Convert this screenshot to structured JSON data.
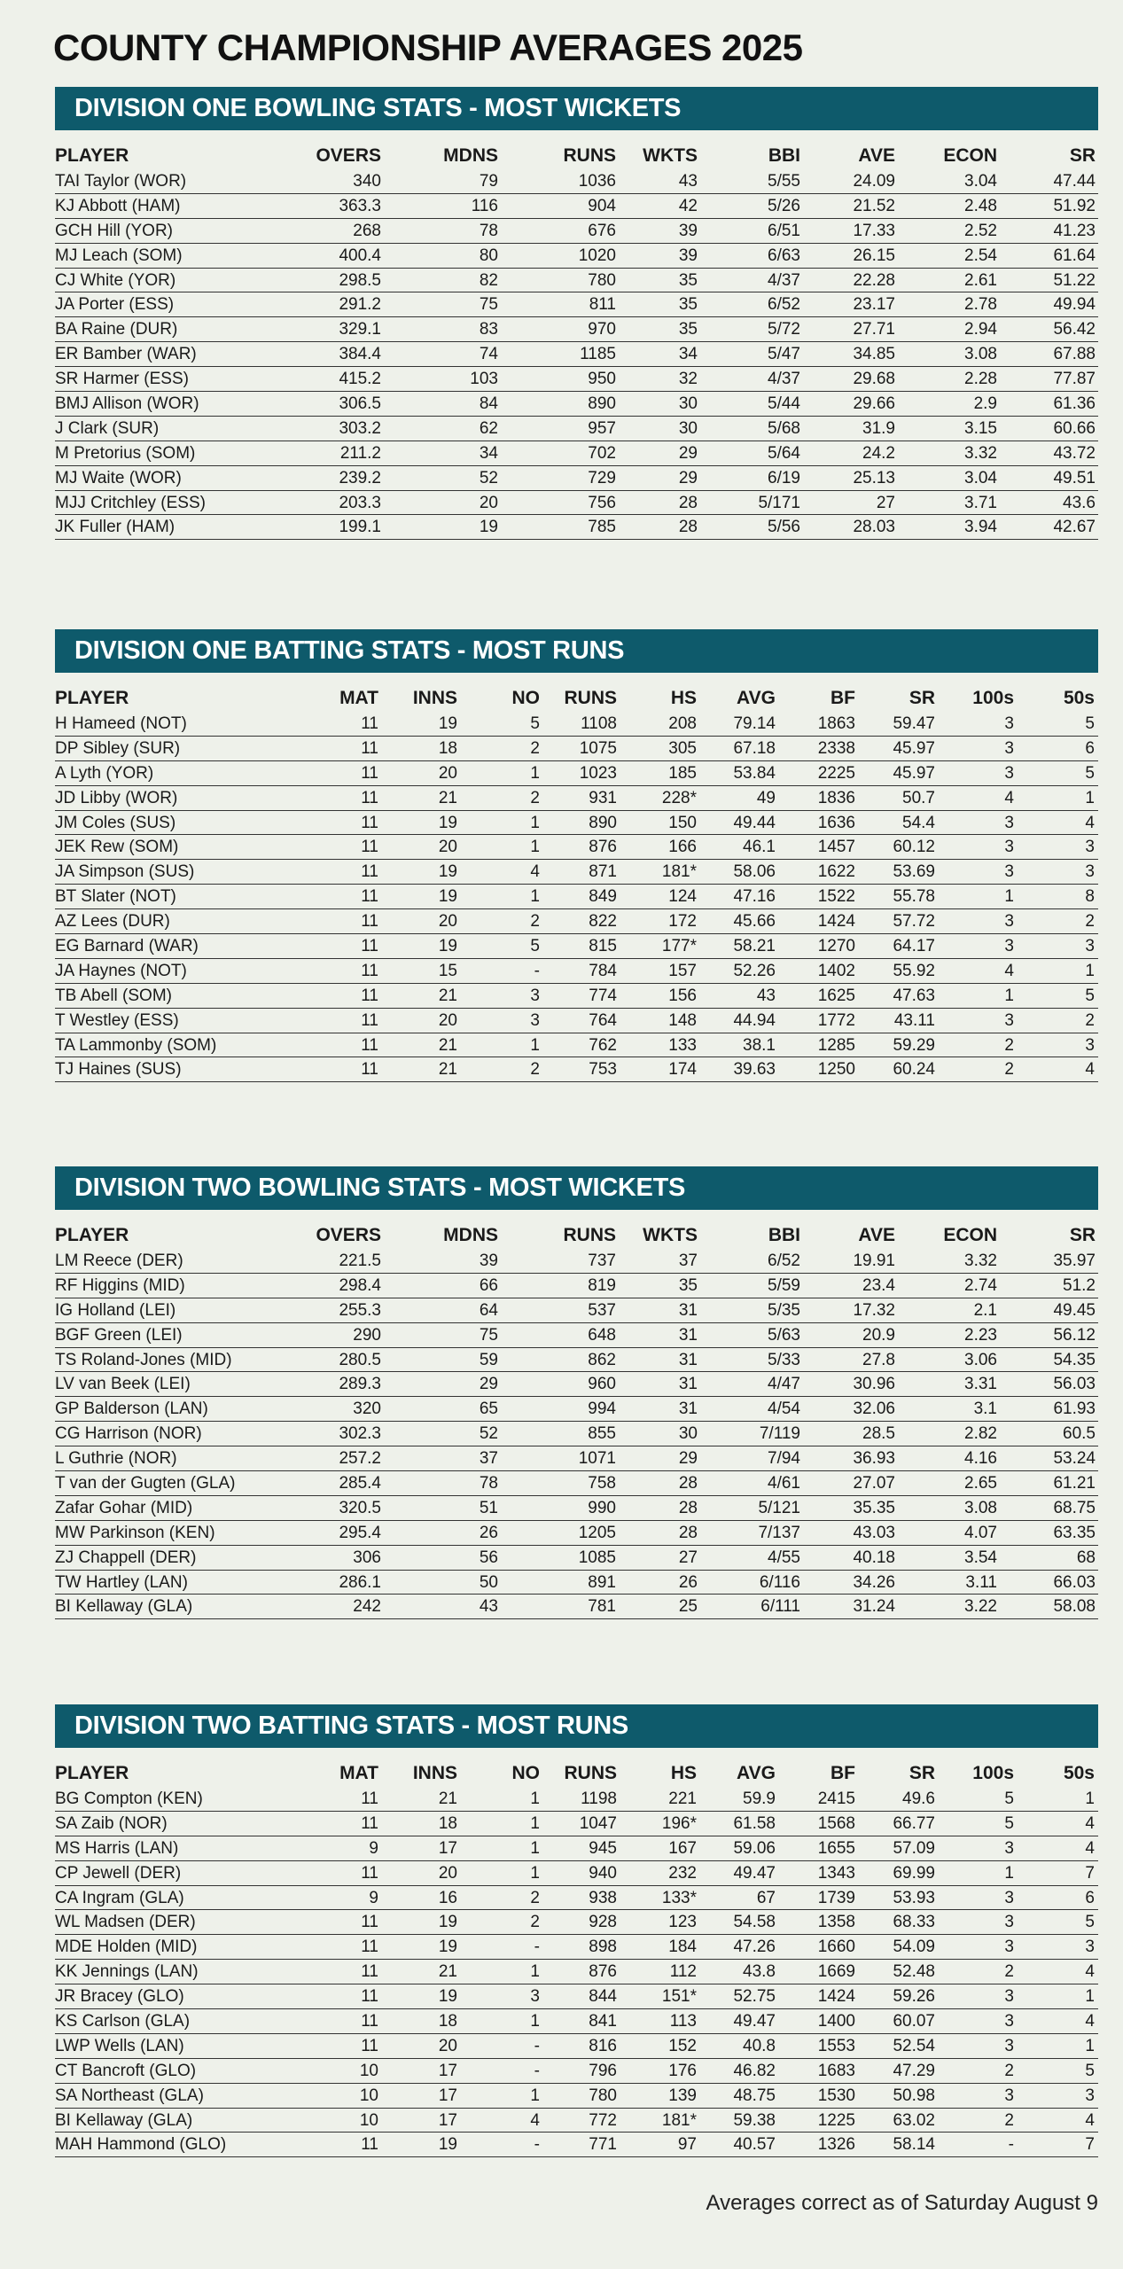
{
  "title": "COUNTY CHAMPIONSHIP  AVERAGES 2025",
  "sections": [
    {
      "heading": "DIVISION ONE BOWLING STATS - MOST WICKETS",
      "table": {
        "columns": [
          "PLAYER",
          "OVERS",
          "MDNS",
          "RUNS",
          "WKTS",
          "BBI",
          "AVE",
          "ECON",
          "SR"
        ],
        "rows": [
          [
            "TAI Taylor (WOR)",
            "340",
            "79",
            "1036",
            "43",
            "5/55",
            "24.09",
            "3.04",
            "47.44"
          ],
          [
            "KJ Abbott (HAM)",
            "363.3",
            "116",
            "904",
            "42",
            "5/26",
            "21.52",
            "2.48",
            "51.92"
          ],
          [
            "GCH Hill (YOR)",
            "268",
            "78",
            "676",
            "39",
            "6/51",
            "17.33",
            "2.52",
            "41.23"
          ],
          [
            "MJ Leach (SOM)",
            "400.4",
            "80",
            "1020",
            "39",
            "6/63",
            "26.15",
            "2.54",
            "61.64"
          ],
          [
            "CJ White (YOR)",
            "298.5",
            "82",
            "780",
            "35",
            "4/37",
            "22.28",
            "2.61",
            "51.22"
          ],
          [
            "JA Porter (ESS)",
            "291.2",
            "75",
            "811",
            "35",
            "6/52",
            "23.17",
            "2.78",
            "49.94"
          ],
          [
            "BA Raine (DUR)",
            "329.1",
            "83",
            "970",
            "35",
            "5/72",
            "27.71",
            "2.94",
            "56.42"
          ],
          [
            "ER Bamber (WAR)",
            "384.4",
            "74",
            "1185",
            "34",
            "5/47",
            "34.85",
            "3.08",
            "67.88"
          ],
          [
            "SR Harmer (ESS)",
            "415.2",
            "103",
            "950",
            "32",
            "4/37",
            "29.68",
            "2.28",
            "77.87"
          ],
          [
            "BMJ Allison (WOR)",
            "306.5",
            "84",
            "890",
            "30",
            "5/44",
            "29.66",
            "2.9",
            "61.36"
          ],
          [
            "J Clark (SUR)",
            "303.2",
            "62",
            "957",
            "30",
            "5/68",
            "31.9",
            "3.15",
            "60.66"
          ],
          [
            "M Pretorius (SOM)",
            "211.2",
            "34",
            "702",
            "29",
            "5/64",
            "24.2",
            "3.32",
            "43.72"
          ],
          [
            "MJ Waite (WOR)",
            "239.2",
            "52",
            "729",
            "29",
            "6/19",
            "25.13",
            "3.04",
            "49.51"
          ],
          [
            "MJJ Critchley (ESS)",
            "203.3",
            "20",
            "756",
            "28",
            "5/171",
            "27",
            "3.71",
            "43.6"
          ],
          [
            "JK Fuller (HAM)",
            "199.1",
            "19",
            "785",
            "28",
            "5/56",
            "28.03",
            "3.94",
            "42.67"
          ]
        ]
      }
    },
    {
      "heading": "DIVISION ONE BATTING STATS - MOST RUNS",
      "table": {
        "columns": [
          "PLAYER",
          "MAT",
          "INNS",
          "NO",
          "RUNS",
          "HS",
          "AVG",
          "BF",
          "SR",
          "100s",
          "50s"
        ],
        "rows": [
          [
            "H Hameed (NOT)",
            "11",
            "19",
            "5",
            "1108",
            "208",
            "79.14",
            "1863",
            "59.47",
            "3",
            "5"
          ],
          [
            "DP Sibley (SUR)",
            "11",
            "18",
            "2",
            "1075",
            "305",
            "67.18",
            "2338",
            "45.97",
            "3",
            "6"
          ],
          [
            "A Lyth (YOR)",
            "11",
            "20",
            "1",
            "1023",
            "185",
            "53.84",
            "2225",
            "45.97",
            "3",
            "5"
          ],
          [
            "JD Libby (WOR)",
            "11",
            "21",
            "2",
            "931",
            "228*",
            "49",
            "1836",
            "50.7",
            "4",
            "1"
          ],
          [
            "JM Coles (SUS)",
            "11",
            "19",
            "1",
            "890",
            "150",
            "49.44",
            "1636",
            "54.4",
            "3",
            "4"
          ],
          [
            "JEK Rew (SOM)",
            "11",
            "20",
            "1",
            "876",
            "166",
            "46.1",
            "1457",
            "60.12",
            "3",
            "3"
          ],
          [
            "JA Simpson (SUS)",
            "11",
            "19",
            "4",
            "871",
            "181*",
            "58.06",
            "1622",
            "53.69",
            "3",
            "3"
          ],
          [
            "BT Slater (NOT)",
            "11",
            "19",
            "1",
            "849",
            "124",
            "47.16",
            "1522",
            "55.78",
            "1",
            "8"
          ],
          [
            "AZ Lees (DUR)",
            "11",
            "20",
            "2",
            "822",
            "172",
            "45.66",
            "1424",
            "57.72",
            "3",
            "2"
          ],
          [
            "EG Barnard (WAR)",
            "11",
            "19",
            "5",
            "815",
            "177*",
            "58.21",
            "1270",
            "64.17",
            "3",
            "3"
          ],
          [
            "JA Haynes (NOT)",
            "11",
            "15",
            "-",
            "784",
            "157",
            "52.26",
            "1402",
            "55.92",
            "4",
            "1"
          ],
          [
            "TB Abell (SOM)",
            "11",
            "21",
            "3",
            "774",
            "156",
            "43",
            "1625",
            "47.63",
            "1",
            "5"
          ],
          [
            "T Westley (ESS)",
            "11",
            "20",
            "3",
            "764",
            "148",
            "44.94",
            "1772",
            "43.11",
            "3",
            "2"
          ],
          [
            "TA Lammonby (SOM)",
            "11",
            "21",
            "1",
            "762",
            "133",
            "38.1",
            "1285",
            "59.29",
            "2",
            "3"
          ],
          [
            "TJ Haines (SUS)",
            "11",
            "21",
            "2",
            "753",
            "174",
            "39.63",
            "1250",
            "60.24",
            "2",
            "4"
          ]
        ]
      }
    },
    {
      "heading": "DIVISION TWO BOWLING STATS - MOST WICKETS",
      "table": {
        "columns": [
          "PLAYER",
          "OVERS",
          "MDNS",
          "RUNS",
          "WKTS",
          "BBI",
          "AVE",
          "ECON",
          "SR"
        ],
        "rows": [
          [
            "LM Reece (DER)",
            "221.5",
            "39",
            "737",
            "37",
            "6/52",
            "19.91",
            "3.32",
            "35.97"
          ],
          [
            "RF Higgins (MID)",
            "298.4",
            "66",
            "819",
            "35",
            "5/59",
            "23.4",
            "2.74",
            "51.2"
          ],
          [
            "IG Holland (LEI)",
            "255.3",
            "64",
            "537",
            "31",
            "5/35",
            "17.32",
            "2.1",
            "49.45"
          ],
          [
            "BGF Green (LEI)",
            "290",
            "75",
            "648",
            "31",
            "5/63",
            "20.9",
            "2.23",
            "56.12"
          ],
          [
            "TS Roland-Jones (MID)",
            "280.5",
            "59",
            "862",
            "31",
            "5/33",
            "27.8",
            "3.06",
            "54.35"
          ],
          [
            "LV van Beek (LEI)",
            "289.3",
            "29",
            "960",
            "31",
            "4/47",
            "30.96",
            "3.31",
            "56.03"
          ],
          [
            "GP Balderson (LAN)",
            "320",
            "65",
            "994",
            "31",
            "4/54",
            "32.06",
            "3.1",
            "61.93"
          ],
          [
            "CG Harrison (NOR)",
            "302.3",
            "52",
            "855",
            "30",
            "7/119",
            "28.5",
            "2.82",
            "60.5"
          ],
          [
            "L Guthrie (NOR)",
            "257.2",
            "37",
            "1071",
            "29",
            "7/94",
            "36.93",
            "4.16",
            "53.24"
          ],
          [
            "T van der Gugten (GLA)",
            "285.4",
            "78",
            "758",
            "28",
            "4/61",
            "27.07",
            "2.65",
            "61.21"
          ],
          [
            "Zafar Gohar (MID)",
            "320.5",
            "51",
            "990",
            "28",
            "5/121",
            "35.35",
            "3.08",
            "68.75"
          ],
          [
            "MW Parkinson (KEN)",
            "295.4",
            "26",
            "1205",
            "28",
            "7/137",
            "43.03",
            "4.07",
            "63.35"
          ],
          [
            "ZJ Chappell (DER)",
            "306",
            "56",
            "1085",
            "27",
            "4/55",
            "40.18",
            "3.54",
            "68"
          ],
          [
            "TW Hartley (LAN)",
            "286.1",
            "50",
            "891",
            "26",
            "6/116",
            "34.26",
            "3.11",
            "66.03"
          ],
          [
            "BI Kellaway (GLA)",
            "242",
            "43",
            "781",
            "25",
            "6/111",
            "31.24",
            "3.22",
            "58.08"
          ]
        ]
      }
    },
    {
      "heading": "DIVISION TWO BATTING STATS - MOST RUNS",
      "table": {
        "columns": [
          "PLAYER",
          "MAT",
          "INNS",
          "NO",
          "RUNS",
          "HS",
          "AVG",
          "BF",
          "SR",
          "100s",
          "50s"
        ],
        "rows": [
          [
            "BG Compton (KEN)",
            "11",
            "21",
            "1",
            "1198",
            "221",
            "59.9",
            "2415",
            "49.6",
            "5",
            "1"
          ],
          [
            "SA Zaib (NOR)",
            "11",
            "18",
            "1",
            "1047",
            "196*",
            "61.58",
            "1568",
            "66.77",
            "5",
            "4"
          ],
          [
            "MS Harris (LAN)",
            "9",
            "17",
            "1",
            "945",
            "167",
            "59.06",
            "1655",
            "57.09",
            "3",
            "4"
          ],
          [
            "CP Jewell (DER)",
            "11",
            "20",
            "1",
            "940",
            "232",
            "49.47",
            "1343",
            "69.99",
            "1",
            "7"
          ],
          [
            "CA Ingram (GLA)",
            "9",
            "16",
            "2",
            "938",
            "133*",
            "67",
            "1739",
            "53.93",
            "3",
            "6"
          ],
          [
            "WL Madsen (DER)",
            "11",
            "19",
            "2",
            "928",
            "123",
            "54.58",
            "1358",
            "68.33",
            "3",
            "5"
          ],
          [
            "MDE Holden (MID)",
            "11",
            "19",
            "-",
            "898",
            "184",
            "47.26",
            "1660",
            "54.09",
            "3",
            "3"
          ],
          [
            "KK Jennings (LAN)",
            "11",
            "21",
            "1",
            "876",
            "112",
            "43.8",
            "1669",
            "52.48",
            "2",
            "4"
          ],
          [
            "JR Bracey (GLO)",
            "11",
            "19",
            "3",
            "844",
            "151*",
            "52.75",
            "1424",
            "59.26",
            "3",
            "1"
          ],
          [
            "KS Carlson (GLA)",
            "11",
            "18",
            "1",
            "841",
            "113",
            "49.47",
            "1400",
            "60.07",
            "3",
            "4"
          ],
          [
            "LWP Wells (LAN)",
            "11",
            "20",
            "-",
            "816",
            "152",
            "40.8",
            "1553",
            "52.54",
            "3",
            "1"
          ],
          [
            "CT Bancroft (GLO)",
            "10",
            "17",
            "-",
            "796",
            "176",
            "46.82",
            "1683",
            "47.29",
            "2",
            "5"
          ],
          [
            "SA Northeast (GLA)",
            "10",
            "17",
            "1",
            "780",
            "139",
            "48.75",
            "1530",
            "50.98",
            "3",
            "3"
          ],
          [
            "BI Kellaway (GLA)",
            "10",
            "17",
            "4",
            "772",
            "181*",
            "59.38",
            "1225",
            "63.02",
            "2",
            "4"
          ],
          [
            "MAH Hammond (GLO)",
            "11",
            "19",
            "-",
            "771",
            "97",
            "40.57",
            "1326",
            "58.14",
            "-",
            "7"
          ]
        ]
      }
    }
  ],
  "footer": "Averages correct as of Saturday August 9"
}
